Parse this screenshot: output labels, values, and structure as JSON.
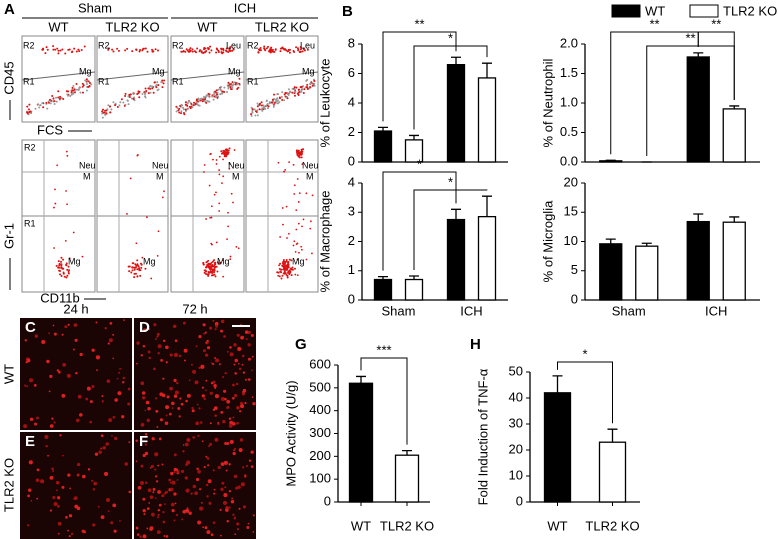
{
  "panel_labels": [
    "A",
    "B",
    "C",
    "D",
    "E",
    "F",
    "G",
    "H"
  ],
  "flow": {
    "groups": [
      "Sham",
      "ICH"
    ],
    "genotypes": [
      "WT",
      "TLR2 KO",
      "WT",
      "TLR2 KO"
    ],
    "top_y_axis": "CD45",
    "top_x_axis": "FCS",
    "top_gates": [
      "R2",
      "R1",
      "Leu",
      "Mg"
    ],
    "bottom_y_axis": "Gr-1",
    "bottom_x_axis": "CD11b",
    "bottom_gates": [
      "R2",
      "R1",
      "Neu",
      "M",
      "Mg"
    ]
  },
  "micro": {
    "times": [
      "24 h",
      "72 h"
    ],
    "rows": [
      "WT",
      "TLR2 KO"
    ]
  },
  "chart_data": [
    {
      "type": "bar",
      "y_label": "% of Leukocyte",
      "categories": [
        null,
        null
      ],
      "series": [
        {
          "name": "WT",
          "color": "#000000",
          "values": [
            2.1,
            6.6
          ],
          "errors": [
            0.25,
            0.5
          ]
        },
        {
          "name": "TLR2 KO",
          "color": "#ffffff",
          "values": [
            1.5,
            5.7
          ],
          "errors": [
            0.3,
            1.0
          ]
        }
      ],
      "ylim": [
        0,
        8
      ],
      "yticks": [
        0,
        2,
        4,
        6,
        8
      ],
      "annotations": [
        "**",
        "*"
      ]
    },
    {
      "type": "bar",
      "y_label": "% of Neutrophil",
      "categories": [
        null,
        null
      ],
      "series": [
        {
          "color": "#000000",
          "values": [
            0.02,
            1.78
          ],
          "errors": [
            0.01,
            0.07
          ]
        },
        {
          "color": "#ffffff",
          "values": [
            0,
            0.9
          ],
          "errors": [
            0,
            0.05
          ]
        }
      ],
      "ylim": [
        0,
        2
      ],
      "yticks": [
        {
          "value": 0,
          "label": "0.0"
        },
        {
          "value": 0.5,
          "label": "0.5"
        },
        {
          "value": 1,
          "label": "1.0"
        },
        {
          "value": 1.5,
          "label": "1.5"
        },
        {
          "value": 2,
          "label": "2.0"
        }
      ],
      "annotations": [
        "**",
        "**",
        "**"
      ]
    },
    {
      "type": "bar",
      "y_label": "% of Macrophage",
      "categories": [
        "Sham",
        "ICH"
      ],
      "series": [
        {
          "color": "#000000",
          "values": [
            0.7,
            2.75
          ],
          "errors": [
            0.1,
            0.35
          ]
        },
        {
          "color": "#ffffff",
          "values": [
            0.7,
            2.85
          ],
          "errors": [
            0.12,
            0.7
          ]
        }
      ],
      "ylim": [
        0,
        4
      ],
      "yticks": [
        0,
        1,
        2,
        3,
        4
      ],
      "annotations": [
        "*",
        "*"
      ]
    },
    {
      "type": "bar",
      "y_label": "% of Microglia",
      "categories": [
        "Sham",
        "ICH"
      ],
      "series": [
        {
          "color": "#000000",
          "values": [
            9.6,
            13.4
          ],
          "errors": [
            0.8,
            1.3
          ]
        },
        {
          "color": "#ffffff",
          "values": [
            9.2,
            13.3
          ],
          "errors": [
            0.5,
            0.9
          ]
        }
      ],
      "ylim": [
        0,
        20
      ],
      "yticks": [
        0,
        5,
        10,
        15,
        20
      ]
    },
    {
      "type": "bar",
      "y_label": "MPO Activity (U/g)",
      "categories": [
        "WT",
        "TLR2 KO"
      ],
      "series": [
        {
          "colors": [
            "#000000",
            "#ffffff"
          ],
          "values": [
            520,
            205
          ],
          "errors": [
            30,
            20
          ]
        }
      ],
      "ylim": [
        0,
        600
      ],
      "yticks": [
        0,
        100,
        200,
        300,
        400,
        500,
        600
      ],
      "annotations": [
        "***"
      ]
    },
    {
      "type": "bar",
      "y_label": "Fold Induction of TNF-α",
      "categories": [
        "WT",
        "TLR2 KO"
      ],
      "series": [
        {
          "colors": [
            "#000000",
            "#ffffff"
          ],
          "values": [
            42,
            23
          ],
          "errors": [
            6.5,
            5
          ]
        }
      ],
      "ylim": [
        0,
        50
      ],
      "yticks": [
        0,
        10,
        20,
        30,
        40,
        50
      ],
      "annotations": [
        "*"
      ]
    }
  ]
}
